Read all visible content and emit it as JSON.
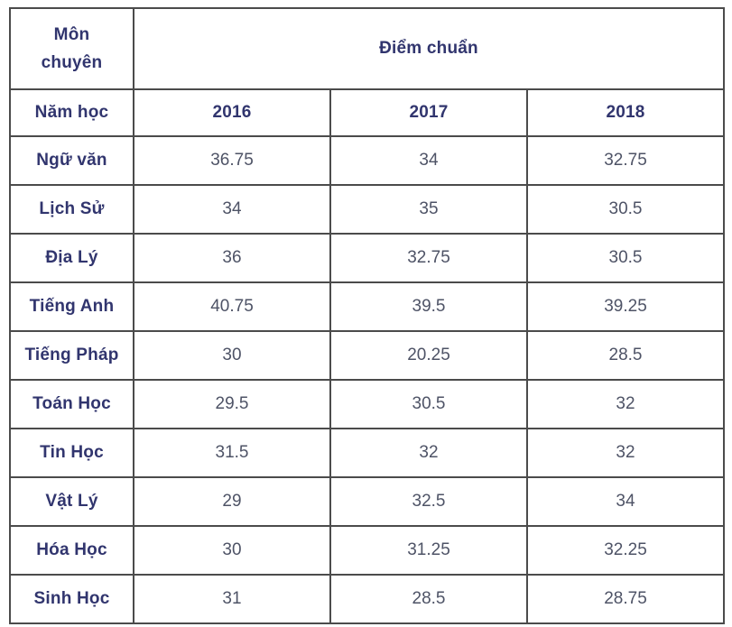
{
  "table": {
    "corner_header_line1": "Môn",
    "corner_header_line2": "chuyên",
    "score_header": "Điểm chuẩn",
    "year_row_label": "Năm học",
    "years": [
      "2016",
      "2017",
      "2018"
    ],
    "rows": [
      {
        "subject": "Ngữ văn",
        "values": [
          "36.75",
          "34",
          "32.75"
        ]
      },
      {
        "subject": "Lịch Sử",
        "values": [
          "34",
          "35",
          "30.5"
        ]
      },
      {
        "subject": "Địa Lý",
        "values": [
          "36",
          "32.75",
          "30.5"
        ]
      },
      {
        "subject": "Tiếng Anh",
        "values": [
          "40.75",
          "39.5",
          "39.25"
        ]
      },
      {
        "subject": "Tiếng Pháp",
        "values": [
          "30",
          "20.25",
          "28.5"
        ]
      },
      {
        "subject": "Toán Học",
        "values": [
          "29.5",
          "30.5",
          "32"
        ]
      },
      {
        "subject": "Tin Học",
        "values": [
          "31.5",
          "32",
          "32"
        ]
      },
      {
        "subject": "Vật Lý",
        "values": [
          "29",
          "32.5",
          "34"
        ]
      },
      {
        "subject": "Hóa Học",
        "values": [
          "30",
          "31.25",
          "32.25"
        ]
      },
      {
        "subject": "Sinh Học",
        "values": [
          "31",
          "28.5",
          "28.75"
        ]
      }
    ]
  },
  "colors": {
    "header_text": "#31356e",
    "value_text": "#4e5366",
    "border": "#4b4b4b",
    "background": "#ffffff"
  },
  "chart_data": {
    "type": "table",
    "title": "Điểm chuẩn",
    "row_header": "Môn chuyên",
    "column_header": "Năm học",
    "columns": [
      "2016",
      "2017",
      "2018"
    ],
    "rows": [
      {
        "subject": "Ngữ văn",
        "values": [
          36.75,
          34,
          32.75
        ]
      },
      {
        "subject": "Lịch Sử",
        "values": [
          34,
          35,
          30.5
        ]
      },
      {
        "subject": "Địa Lý",
        "values": [
          36,
          32.75,
          30.5
        ]
      },
      {
        "subject": "Tiếng Anh",
        "values": [
          40.75,
          39.5,
          39.25
        ]
      },
      {
        "subject": "Tiếng Pháp",
        "values": [
          30,
          20.25,
          28.5
        ]
      },
      {
        "subject": "Toán Học",
        "values": [
          29.5,
          30.5,
          32
        ]
      },
      {
        "subject": "Tin Học",
        "values": [
          31.5,
          32,
          32
        ]
      },
      {
        "subject": "Vật Lý",
        "values": [
          29,
          32.5,
          34
        ]
      },
      {
        "subject": "Hóa Học",
        "values": [
          30,
          31.25,
          32.25
        ]
      },
      {
        "subject": "Sinh Học",
        "values": [
          31,
          28.5,
          28.75
        ]
      }
    ]
  }
}
